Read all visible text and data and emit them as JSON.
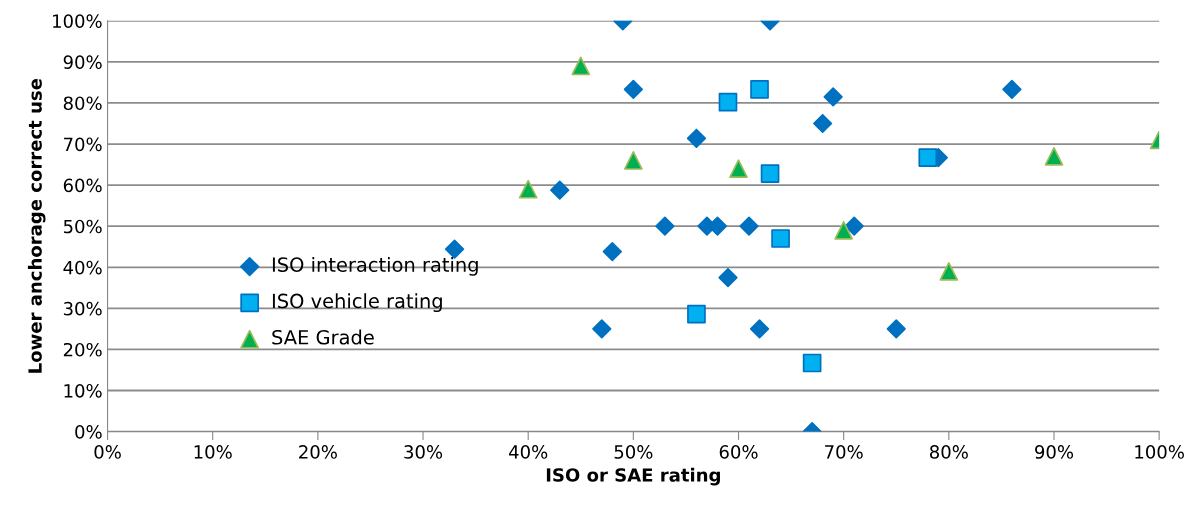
{
  "chart_data": {
    "type": "scatter",
    "xlabel": "ISO or SAE rating",
    "ylabel": "Lower anchorage correct use",
    "xlim": [
      0,
      100
    ],
    "ylim": [
      0,
      100
    ],
    "xticks": [
      {
        "value": 0,
        "label": "0%"
      },
      {
        "value": 10,
        "label": "10%"
      },
      {
        "value": 20,
        "label": "20%"
      },
      {
        "value": 30,
        "label": "30%"
      },
      {
        "value": 40,
        "label": "40%"
      },
      {
        "value": 50,
        "label": "50%"
      },
      {
        "value": 60,
        "label": "60%"
      },
      {
        "value": 70,
        "label": "70%"
      },
      {
        "value": 80,
        "label": "80%"
      },
      {
        "value": 90,
        "label": "90%"
      },
      {
        "value": 100,
        "label": "100%"
      }
    ],
    "yticks": [
      {
        "value": 0,
        "label": "0%"
      },
      {
        "value": 10,
        "label": "10%"
      },
      {
        "value": 20,
        "label": "20%"
      },
      {
        "value": 30,
        "label": "30%"
      },
      {
        "value": 40,
        "label": "40%"
      },
      {
        "value": 50,
        "label": "50%"
      },
      {
        "value": 60,
        "label": "60%"
      },
      {
        "value": 70,
        "label": "70%"
      },
      {
        "value": 80,
        "label": "80%"
      },
      {
        "value": 90,
        "label": "90%"
      },
      {
        "value": 100,
        "label": "100%"
      }
    ],
    "grid": "y",
    "legend": "bottom left",
    "series": [
      {
        "name": "ISO interaction rating",
        "color": "#0070c0",
        "marker": "diamond",
        "x": [
          49,
          63,
          50,
          69,
          86,
          68,
          56,
          43,
          33,
          48,
          53,
          57,
          58,
          61,
          71,
          59,
          47,
          62,
          75,
          67,
          79
        ],
        "values": [
          100,
          100,
          83.3,
          81.5,
          83.3,
          75,
          71.4,
          58.8,
          44.4,
          43.8,
          50,
          50,
          50,
          50,
          50,
          37.5,
          25,
          25,
          25,
          0,
          66.7
        ]
      },
      {
        "name": "ISO vehicle rating",
        "color": "#00b0f0",
        "marker": "square",
        "x": [
          59,
          62,
          78,
          63,
          64,
          56,
          67
        ],
        "values": [
          80.2,
          83.3,
          66.7,
          62.8,
          47,
          28.6,
          16.7
        ]
      },
      {
        "name": "SAE Grade",
        "color": "#00b050",
        "marker": "triangle",
        "x": [
          45,
          40,
          50,
          60,
          70,
          80,
          90,
          100
        ],
        "values": [
          89,
          59,
          66,
          64,
          49,
          39,
          67,
          71
        ]
      }
    ]
  }
}
